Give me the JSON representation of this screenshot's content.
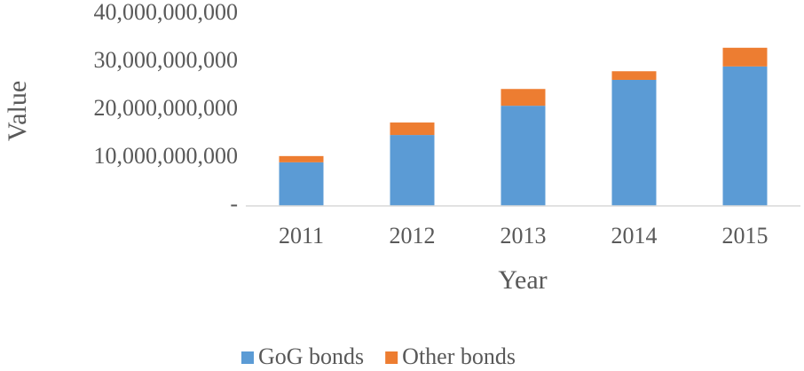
{
  "chart_data": {
    "type": "stacked_bar",
    "x_label": "Year",
    "y_label": "Value",
    "categories": [
      "2011",
      "2012",
      "2013",
      "2014",
      "2015"
    ],
    "series": [
      {
        "name": "GoG bonds",
        "color": "#5b9bd5",
        "values": [
          9100000000,
          14800000000,
          20900000000,
          26300000000,
          29100000000
        ]
      },
      {
        "name": "Other bonds",
        "color": "#ed7d31",
        "values": [
          1300000000,
          2600000000,
          3500000000,
          1800000000,
          3900000000
        ]
      }
    ],
    "ylim": [
      0,
      40000000000
    ],
    "yticks": [
      {
        "value": 0,
        "label": "-"
      },
      {
        "value": 10000000000,
        "label": "10,000,000,000"
      },
      {
        "value": 20000000000,
        "label": "20,000,000,000"
      },
      {
        "value": 30000000000,
        "label": "30,000,000,000"
      },
      {
        "value": 40000000000,
        "label": "40,000,000,000"
      }
    ],
    "grid": false,
    "legend": "bottom"
  }
}
